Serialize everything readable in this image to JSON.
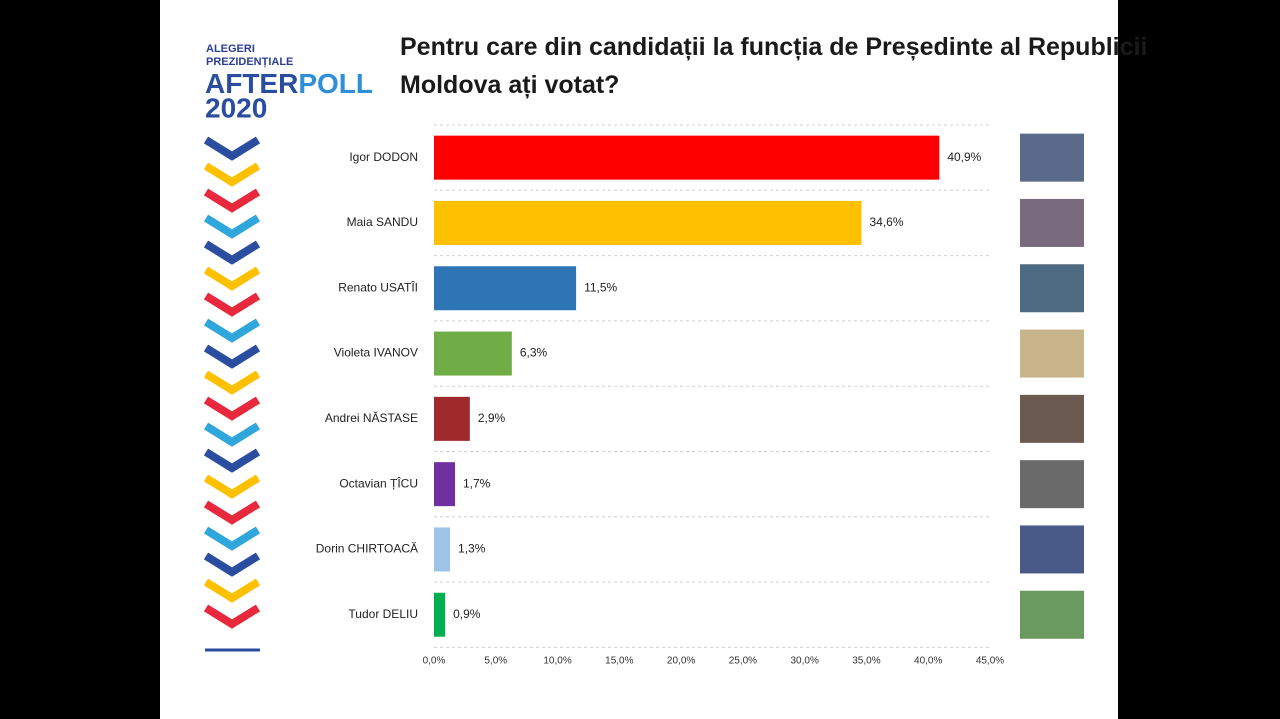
{
  "logo": {
    "line1": "ALEGERI",
    "line2": "PREZIDENȚIALE",
    "after": "AFTER",
    "poll": "POLL",
    "year": "2020"
  },
  "chart_data": {
    "type": "bar",
    "orientation": "horizontal",
    "title": "Pentru care din candidații la funcția de Președinte al Republicii Moldova ați votat?",
    "categories": [
      "Igor DODON",
      "Maia SANDU",
      "Renato USATÎI",
      "Violeta IVANOV",
      "Andrei NĂSTASE",
      "Octavian ȚÎCU",
      "Dorin CHIRTOACĂ",
      "Tudor DELIU"
    ],
    "values": [
      40.9,
      34.6,
      11.5,
      6.3,
      2.9,
      1.7,
      1.3,
      0.9
    ],
    "value_labels": [
      "40,9%",
      "34,6%",
      "11,5%",
      "6,3%",
      "2,9%",
      "1,7%",
      "1,3%",
      "0,9%"
    ],
    "colors": [
      "#ff0000",
      "#ffc000",
      "#2e75b6",
      "#70ad47",
      "#9e2a2b",
      "#7030a0",
      "#9dc3e6",
      "#00b050"
    ],
    "xlim": [
      0,
      45
    ],
    "xticks": [
      {
        "value": 0,
        "label": "0,0%"
      },
      {
        "value": 5,
        "label": "5,0%"
      },
      {
        "value": 10,
        "label": "10,0%"
      },
      {
        "value": 15,
        "label": "15,0%"
      },
      {
        "value": 20,
        "label": "20,0%"
      },
      {
        "value": 25,
        "label": "25,0%"
      },
      {
        "value": 30,
        "label": "30,0%"
      },
      {
        "value": 35,
        "label": "35,0%"
      },
      {
        "value": 40,
        "label": "40,0%"
      },
      {
        "value": 45,
        "label": "45,0%"
      }
    ]
  }
}
